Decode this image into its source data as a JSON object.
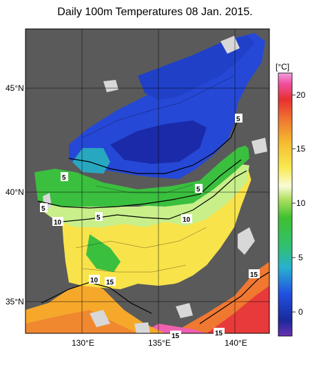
{
  "title": "Daily 100m Temperatures 08 Jan. 2015.",
  "unit_label": "[°C]",
  "lat_labels": [
    "45°N",
    "40°N",
    "35°N"
  ],
  "lon_labels": [
    "130°E",
    "135°E",
    "140°E"
  ],
  "colorbar_ticks": [
    "20",
    "15",
    "10",
    "5",
    "0"
  ],
  "contour_labels": [
    "5",
    "5",
    "5",
    "5",
    "5",
    "10",
    "10",
    "10",
    "15",
    "15",
    "15",
    "15"
  ],
  "colors": {
    "land": "#5a5a5a",
    "missing": "#d8d8d8",
    "cold": "#1e2cc0",
    "mid": "#22b24a",
    "warm": "#f7e84a",
    "hot": "#f05a28"
  }
}
